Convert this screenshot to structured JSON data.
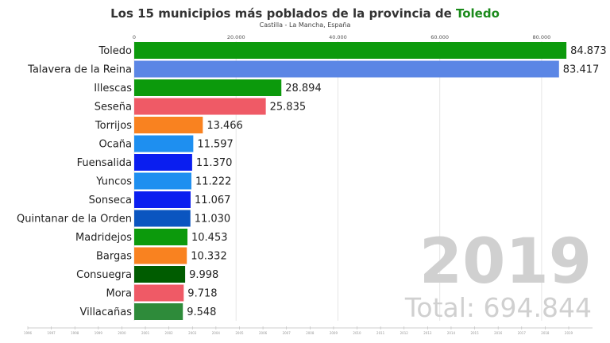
{
  "title": {
    "prefix": "Los 15 municipios más poblados de la provincia de ",
    "highlight": "Toledo",
    "highlight_color": "#1a8a1a",
    "subtitle": "Castilla - La Mancha, España"
  },
  "overlay": {
    "year": "2019",
    "total": "Total: 694.844"
  },
  "chart_data": {
    "type": "bar",
    "orientation": "horizontal",
    "categories": [
      "Toledo",
      "Talavera de la Reina",
      "Illescas",
      "Seseña",
      "Torrijos",
      "Ocaña",
      "Fuensalida",
      "Yuncos",
      "Sonseca",
      "Quintanar de la Orden",
      "Madridejos",
      "Bargas",
      "Consuegra",
      "Mora",
      "Villacañas"
    ],
    "values": [
      84873,
      83417,
      28894,
      25835,
      13466,
      11597,
      11370,
      11222,
      11067,
      11030,
      10453,
      10332,
      9998,
      9718,
      9548
    ],
    "value_labels": [
      "84.873",
      "83.417",
      "28.894",
      "25.835",
      "13.466",
      "11.597",
      "11.370",
      "11.222",
      "11.067",
      "11.030",
      "10.453",
      "10.332",
      "9.998",
      "9.718",
      "9.548"
    ],
    "colors": [
      "#0c9a0c",
      "#5b86e5",
      "#0c9a0c",
      "#ef5a66",
      "#f98220",
      "#1e8ff0",
      "#0a1ef0",
      "#1e8ff0",
      "#0a1ef0",
      "#0a55c0",
      "#0c9a0c",
      "#f98220",
      "#005c00",
      "#ef5a66",
      "#2e8b3a"
    ],
    "xlim": [
      0,
      90000
    ],
    "x_ticks": [
      0,
      20000,
      40000,
      60000,
      80000
    ],
    "x_tick_labels": [
      "0",
      "20.000",
      "40.000",
      "60.000",
      "80.000"
    ],
    "grid": true
  },
  "timeline": {
    "ticks": [
      "1996",
      "1997",
      "1998",
      "1999",
      "2000",
      "2001",
      "2002",
      "2003",
      "2004",
      "2005",
      "2006",
      "2007",
      "2008",
      "2009",
      "2010",
      "2011",
      "2012",
      "2013",
      "2014",
      "2015",
      "2016",
      "2017",
      "2018",
      "2019"
    ]
  }
}
